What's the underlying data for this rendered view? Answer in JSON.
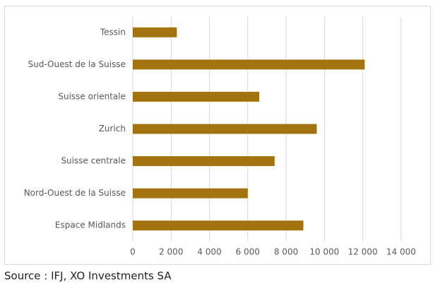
{
  "chart_data": {
    "type": "bar",
    "orientation": "horizontal",
    "categories": [
      "Tessin",
      "Sud-Ouest de la Suisse",
      "Suisse orientale",
      "Zurich",
      "Suisse centrale",
      "Nord-Ouest de la Suisse",
      "Espace Midlands"
    ],
    "values": [
      2300,
      12100,
      6600,
      9600,
      7400,
      6000,
      8900
    ],
    "color": "#a3730f",
    "xlim": [
      0,
      14000
    ],
    "xticks": [
      0,
      {
        "value": 2000,
        "label": "2 000"
      },
      {
        "value": 4000,
        "label": "4 000"
      },
      {
        "value": 6000,
        "label": "6 000"
      },
      {
        "value": 8000,
        "label": "8 000"
      },
      {
        "value": 10000,
        "label": "10 000"
      },
      {
        "value": 12000,
        "label": "12 000"
      },
      {
        "value": 14000,
        "label": "14 000"
      }
    ],
    "grid": true,
    "source": "Source : IFJ, XO Investments SA"
  }
}
